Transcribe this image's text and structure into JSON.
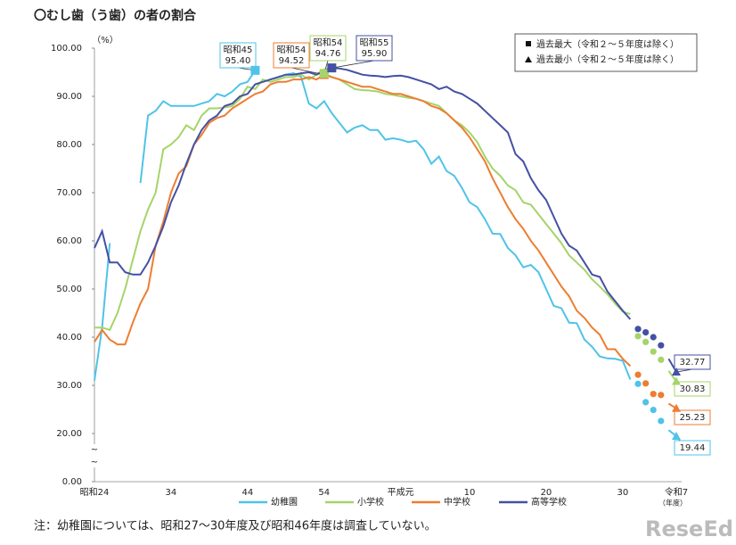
{
  "chart_data": {
    "type": "line",
    "title": "〇むし歯（う歯）の者の割合",
    "y_unit": "（%）",
    "x_unit": "（年度）",
    "note": "注：幼稚園については、昭和27～30年度及び昭和46年度は調査していない。",
    "watermark": "ReseEd",
    "legend_notes": [
      "過去最大（令和２～５年度は除く）",
      "過去最小（令和２～５年度は除く）"
    ],
    "categories": [
      "昭和24",
      null,
      null,
      null,
      null,
      null,
      null,
      null,
      null,
      null,
      "34",
      null,
      null,
      null,
      null,
      null,
      null,
      null,
      null,
      null,
      "44",
      null,
      null,
      null,
      null,
      null,
      null,
      null,
      null,
      null,
      "54",
      null,
      null,
      null,
      null,
      null,
      null,
      null,
      null,
      null,
      "平成元",
      null,
      null,
      null,
      null,
      null,
      null,
      null,
      null,
      "10",
      null,
      null,
      null,
      null,
      null,
      null,
      null,
      null,
      null,
      "20",
      null,
      null,
      null,
      null,
      null,
      null,
      null,
      null,
      null,
      "30",
      null,
      null,
      null,
      null,
      null,
      null,
      "令和7"
    ],
    "markers_only": [
      71,
      72,
      73,
      74
    ],
    "ylim": [
      0,
      100
    ],
    "ybreak": [
      0,
      10
    ],
    "yticks": [
      {
        "value": 0,
        "label": "0.00"
      },
      {
        "value": 20,
        "label": "20.00"
      },
      {
        "value": 30,
        "label": "30.00"
      },
      {
        "value": 40,
        "label": "40.00"
      },
      {
        "value": 50,
        "label": "50.00"
      },
      {
        "value": 60,
        "label": "60.00"
      },
      {
        "value": 70,
        "label": "70.00"
      },
      {
        "value": 80,
        "label": "80.00"
      },
      {
        "value": 90,
        "label": "90.00"
      },
      {
        "value": 100,
        "label": "100.00"
      }
    ],
    "series": [
      {
        "name": "幼稚園",
        "color": "#4fc3e8",
        "values": [
          31,
          42,
          59.5,
          null,
          null,
          null,
          72,
          86,
          87,
          89,
          88,
          88,
          88,
          88,
          88.5,
          89,
          90.5,
          90,
          91,
          92.5,
          93,
          95.4,
          null,
          93.5,
          94,
          94.5,
          94.8,
          94,
          88.5,
          87.5,
          89,
          86.5,
          84.5,
          82.5,
          83.5,
          84,
          83,
          83,
          81,
          81.3,
          81,
          80.5,
          80.8,
          79,
          76,
          77.5,
          74.5,
          73.5,
          71,
          68,
          67,
          64.5,
          61.5,
          61.4,
          58.5,
          57,
          54.5,
          55,
          53.5,
          50,
          46.5,
          46,
          43,
          42.9,
          39.5,
          38,
          36,
          35.6,
          35.5,
          35.1,
          31.2,
          30.3,
          26.5,
          24.9,
          22.6,
          20.7,
          19.44
        ]
      },
      {
        "name": "小学校",
        "color": "#a5d46a",
        "values": [
          42,
          42,
          41.5,
          45,
          50,
          56,
          62,
          66.5,
          70,
          79,
          80,
          81.5,
          84,
          83,
          86,
          87.5,
          87.5,
          87.7,
          88,
          89.5,
          92,
          91.5,
          93.5,
          93,
          93.5,
          94,
          94,
          94.5,
          93.5,
          94.5,
          94.76,
          94,
          93.5,
          92.5,
          91.5,
          91.3,
          91.2,
          91,
          90.5,
          90.3,
          90,
          89.7,
          89.5,
          89,
          88.5,
          88,
          86.5,
          85,
          84,
          82.5,
          80.5,
          77.5,
          75,
          73.5,
          71.5,
          70.5,
          68,
          67.5,
          65.5,
          63.5,
          61.5,
          59.5,
          57,
          55.5,
          54,
          52,
          50.5,
          48.9,
          47,
          45.3,
          44.8,
          40.2,
          39,
          37,
          35.3,
          33,
          30.83
        ]
      },
      {
        "name": "中学校",
        "color": "#ed7d31",
        "values": [
          39,
          41.5,
          39.5,
          38.5,
          38.5,
          43,
          47,
          50,
          59,
          64,
          70,
          74,
          75.5,
          80,
          82,
          84.5,
          85.5,
          86,
          87.5,
          88.5,
          89.5,
          90.5,
          91,
          92.5,
          93,
          93,
          93.5,
          93.5,
          94,
          93.5,
          94.52,
          94,
          93.5,
          93,
          92.5,
          92,
          92,
          91.5,
          91,
          90.5,
          90.5,
          90,
          89.5,
          89,
          88,
          87.5,
          86.5,
          85,
          83.5,
          81.5,
          79,
          76.5,
          73,
          70,
          67,
          64.5,
          62.5,
          60,
          58,
          55.5,
          53,
          50.5,
          48.5,
          45.5,
          44,
          42,
          40.5,
          37.5,
          37.5,
          35.5,
          34,
          32.2,
          30.4,
          28.2,
          28,
          26.2,
          25.23
        ]
      },
      {
        "name": "高等学校",
        "color": "#4351a3",
        "values": [
          58.5,
          62,
          55.5,
          55.5,
          53.5,
          53,
          53,
          55.5,
          59,
          63,
          68,
          71.5,
          76,
          80,
          83,
          85,
          86,
          88,
          88.5,
          90,
          90.5,
          92.5,
          93,
          93.5,
          94,
          94.5,
          94.5,
          94.8,
          95,
          94.5,
          95.5,
          95.9,
          95.8,
          95.5,
          95,
          94.5,
          94.3,
          94.2,
          94,
          94.2,
          94.3,
          94,
          93.5,
          93,
          92.5,
          91.5,
          92,
          91,
          90.5,
          89.5,
          88.5,
          87,
          85.5,
          84,
          82.5,
          78,
          76.5,
          73,
          70.5,
          68.5,
          65,
          61.5,
          59,
          58,
          55.5,
          53,
          52.5,
          49.5,
          47.5,
          45.5,
          43.7,
          41.7,
          41,
          40,
          38.3,
          35.5,
          32.77
        ]
      }
    ],
    "annotations": [
      {
        "series": 0,
        "index": 21,
        "kind": "max",
        "text": [
          "昭和45",
          "95.40"
        ]
      },
      {
        "series": 2,
        "index": 30,
        "kind": "max",
        "text": [
          "昭和54",
          "94.52"
        ]
      },
      {
        "series": 1,
        "index": 30,
        "kind": "max",
        "text": [
          "昭和54",
          "94.76"
        ]
      },
      {
        "series": 3,
        "index": 31,
        "kind": "max",
        "text": [
          "昭和55",
          "95.90"
        ]
      },
      {
        "series": 3,
        "index": 76,
        "kind": "min",
        "text": [
          "32.77"
        ]
      },
      {
        "series": 1,
        "index": 76,
        "kind": "min",
        "text": [
          "30.83"
        ]
      },
      {
        "series": 2,
        "index": 76,
        "kind": "min",
        "text": [
          "25.23"
        ]
      },
      {
        "series": 0,
        "index": 76,
        "kind": "min",
        "text": [
          "19.44"
        ]
      }
    ]
  }
}
